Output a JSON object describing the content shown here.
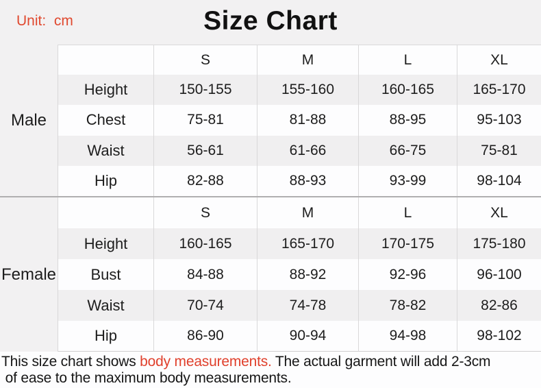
{
  "header": {
    "unit_label": "Unit:  cm",
    "title": "Size Chart"
  },
  "chart_data": {
    "type": "table",
    "title": "Size Chart",
    "unit": "cm",
    "size_headers": [
      "S",
      "M",
      "L",
      "XL"
    ],
    "sections": [
      {
        "label": "Male",
        "rows": [
          {
            "name": "Height",
            "values": [
              "150-155",
              "155-160",
              "160-165",
              "165-170"
            ]
          },
          {
            "name": "Chest",
            "values": [
              "75-81",
              "81-88",
              "88-95",
              "95-103"
            ]
          },
          {
            "name": "Waist",
            "values": [
              "56-61",
              "61-66",
              "66-75",
              "75-81"
            ]
          },
          {
            "name": "Hip",
            "values": [
              "82-88",
              "88-93",
              "93-99",
              "98-104"
            ]
          }
        ]
      },
      {
        "label": "Female",
        "rows": [
          {
            "name": "Height",
            "values": [
              "160-165",
              "165-170",
              "170-175",
              "175-180"
            ]
          },
          {
            "name": "Bust",
            "values": [
              "84-88",
              "88-92",
              "92-96",
              "96-100"
            ]
          },
          {
            "name": "Waist",
            "values": [
              "70-74",
              "74-78",
              "78-82",
              "82-86"
            ]
          },
          {
            "name": "Hip",
            "values": [
              "86-90",
              "90-94",
              "94-98",
              "98-102"
            ]
          }
        ]
      }
    ]
  },
  "note": {
    "prefix": "This size chart shows ",
    "highlight": "body measurements.",
    "suffix": " The actual garment will add 2-3cm\n of ease to the maximum body measurements."
  },
  "colors": {
    "accent_red": "#e0492f",
    "row_shade": "#f0eff0",
    "cell_white": "#fdfdfe",
    "border_light": "#d9d8d9",
    "section_separator": "#b0afb0"
  }
}
